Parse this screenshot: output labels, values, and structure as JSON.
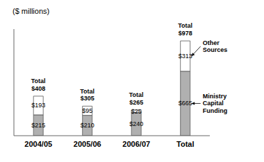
{
  "chart_data": {
    "type": "bar",
    "stacked": true,
    "categories": [
      "2004/05",
      "2005/06",
      "2006/07",
      "Total"
    ],
    "series": [
      {
        "name": "Ministry\nCapital\nFunding",
        "color": "#b0b0b0",
        "values": [
          215,
          210,
          240,
          665
        ],
        "value_labels": [
          "$215",
          "$210",
          "$240",
          "$665"
        ]
      },
      {
        "name": "Other\nSources",
        "color": "#ffffff",
        "values": [
          193,
          95,
          25,
          313
        ],
        "value_labels": [
          "$193",
          "$95",
          "$25",
          "$313"
        ]
      }
    ],
    "annotations": [
      {
        "category": "2004/05",
        "text": "Total\n$408"
      },
      {
        "category": "2005/06",
        "text": "Total\n$305"
      },
      {
        "category": "2006/07",
        "text": "Total\n$265"
      },
      {
        "category": "Total",
        "text": "Total\n$978"
      }
    ],
    "ylabel": "($ millions)",
    "ylim": [
      0,
      1100
    ],
    "tick_labels": "x",
    "data_labels": true,
    "legend": "right"
  }
}
